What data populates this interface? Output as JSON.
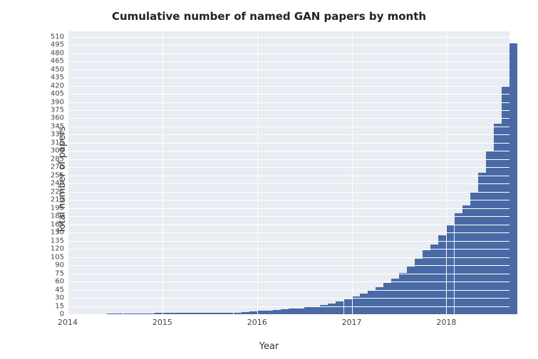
{
  "chart": {
    "type": "bar",
    "title": "Cumulative number of named GAN papers by month",
    "title_fontsize": 15,
    "xlabel": "Year",
    "ylabel": "Total number of papers",
    "label_fontsize": 13,
    "tick_fontsize": 10,
    "background_color": "#ffffff",
    "plot_background_color": "#e9ecf2",
    "grid_color": "#ffffff",
    "bar_color": "#4a6aa5",
    "text_color": "#333333",
    "xlim": [
      0,
      56
    ],
    "ylim": [
      0,
      520
    ],
    "xticks": [
      {
        "pos": 0,
        "label": "2014"
      },
      {
        "pos": 12,
        "label": "2015"
      },
      {
        "pos": 24,
        "label": "2016"
      },
      {
        "pos": 36,
        "label": "2017"
      },
      {
        "pos": 48,
        "label": "2018"
      }
    ],
    "yticks": [
      0,
      15,
      30,
      45,
      60,
      75,
      90,
      105,
      120,
      135,
      150,
      165,
      180,
      195,
      210,
      225,
      240,
      255,
      270,
      285,
      300,
      315,
      330,
      345,
      360,
      375,
      390,
      405,
      420,
      435,
      450,
      465,
      480,
      495,
      510
    ],
    "values": [
      0,
      0,
      0,
      0,
      0,
      1,
      1,
      1,
      1,
      1,
      1,
      2,
      2,
      2,
      2,
      2,
      2,
      3,
      3,
      3,
      3,
      3,
      4,
      5,
      6,
      7,
      8,
      9,
      10,
      11,
      13,
      15,
      17,
      20,
      24,
      28,
      33,
      38,
      44,
      50,
      58,
      66,
      76,
      88,
      102,
      118,
      128,
      145,
      165,
      185,
      200,
      225,
      260,
      300,
      350,
      420,
      498
    ],
    "bar_width": 1.0
  }
}
